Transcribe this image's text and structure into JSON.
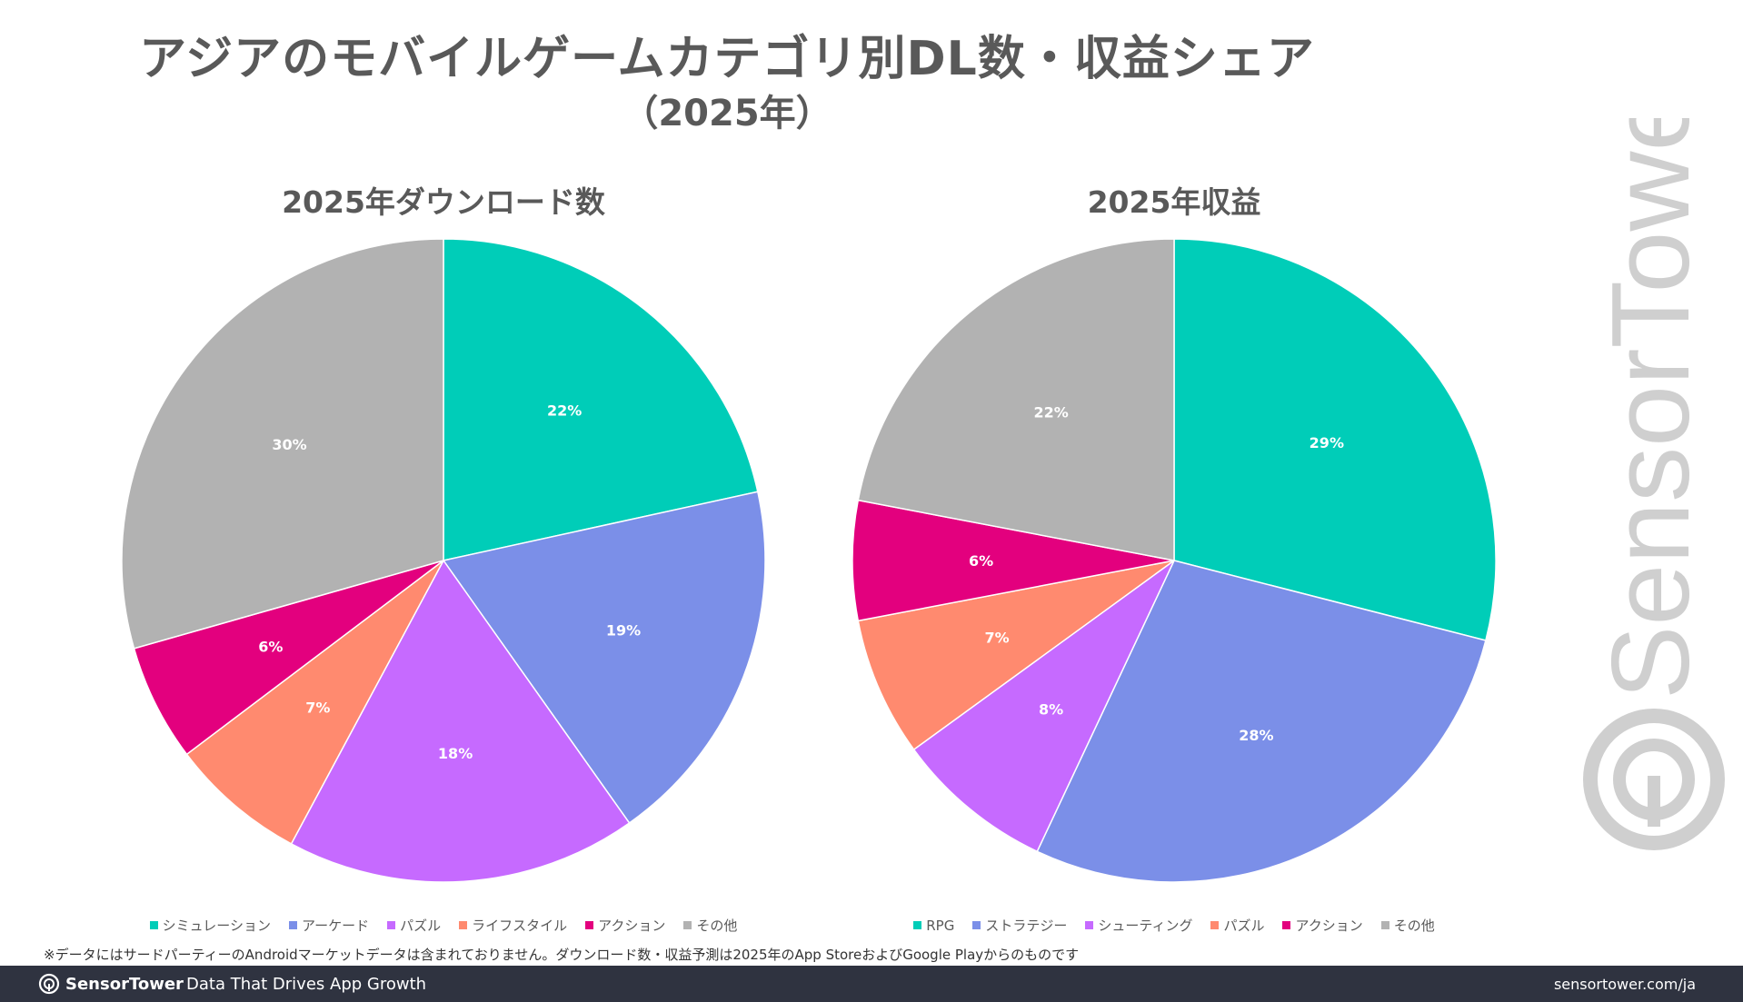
{
  "title": "アジアのモバイルゲームカテゴリ別DL数・収益シェア",
  "subtitle": "（2025年）",
  "colors": {
    "teal": "#00cdb8",
    "blue": "#7b8fe8",
    "purple": "#c66aff",
    "salmon": "#ff8a6f",
    "magenta": "#e3007e",
    "gray": "#b2b2b2"
  },
  "chart_data": [
    {
      "type": "pie",
      "title": "2025年ダウンロード数",
      "labels": [
        "シミュレーション",
        "アーケード",
        "パズル",
        "ライフスタイル",
        "アクション",
        "その他"
      ],
      "values": [
        22,
        19,
        18,
        7,
        6,
        30
      ],
      "value_labels": [
        "22%",
        "19%",
        "18%",
        "7%",
        "6%",
        "30%"
      ],
      "colors": [
        "#00cdb8",
        "#7b8fe8",
        "#c66aff",
        "#ff8a6f",
        "#e3007e",
        "#b2b2b2"
      ],
      "legend_position": "bottom"
    },
    {
      "type": "pie",
      "title": "2025年収益",
      "labels": [
        "RPG",
        "ストラテジー",
        "シューティング",
        "パズル",
        "アクション",
        "その他"
      ],
      "values": [
        29,
        28,
        8,
        7,
        6,
        22
      ],
      "value_labels": [
        "29%",
        "28%",
        "8%",
        "7%",
        "6%",
        "22%"
      ],
      "colors": [
        "#00cdb8",
        "#7b8fe8",
        "#c66aff",
        "#ff8a6f",
        "#e3007e",
        "#b2b2b2"
      ],
      "legend_position": "bottom"
    }
  ],
  "footnote": "※データにはサードパーティーのAndroidマーケットデータは含まれておりません。ダウンロード数・収益予測は2025年のApp StoreおよびGoogle Playからのものです",
  "watermark": {
    "text": "SensorTower"
  },
  "footer": {
    "brand": "SensorTower",
    "tagline": "Data That Drives App Growth",
    "url": "sensortower.com/ja"
  }
}
